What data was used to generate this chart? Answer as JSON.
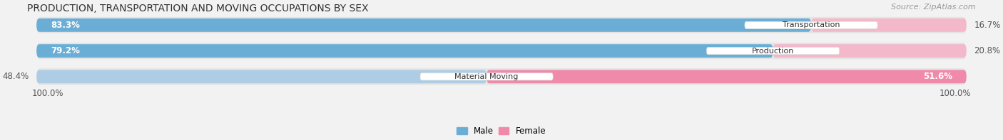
{
  "title": "PRODUCTION, TRANSPORTATION AND MOVING OCCUPATIONS BY SEX",
  "source": "Source: ZipAtlas.com",
  "categories": [
    "Transportation",
    "Production",
    "Material Moving"
  ],
  "male_pct": [
    83.3,
    79.2,
    48.4
  ],
  "female_pct": [
    16.7,
    20.8,
    51.6
  ],
  "male_color_strong": "#6aaed6",
  "male_color_light": "#aecde4",
  "female_color_strong": "#f08aaa",
  "female_color_light": "#f4b8cb",
  "bg_color": "#f2f2f2",
  "row_bg": "#e4e4e4",
  "label_left_100": "100.0%",
  "label_right_100": "100.0%",
  "title_fontsize": 10,
  "source_fontsize": 8,
  "bar_label_fontsize": 8.5,
  "cat_label_fontsize": 8,
  "legend_fontsize": 8.5
}
